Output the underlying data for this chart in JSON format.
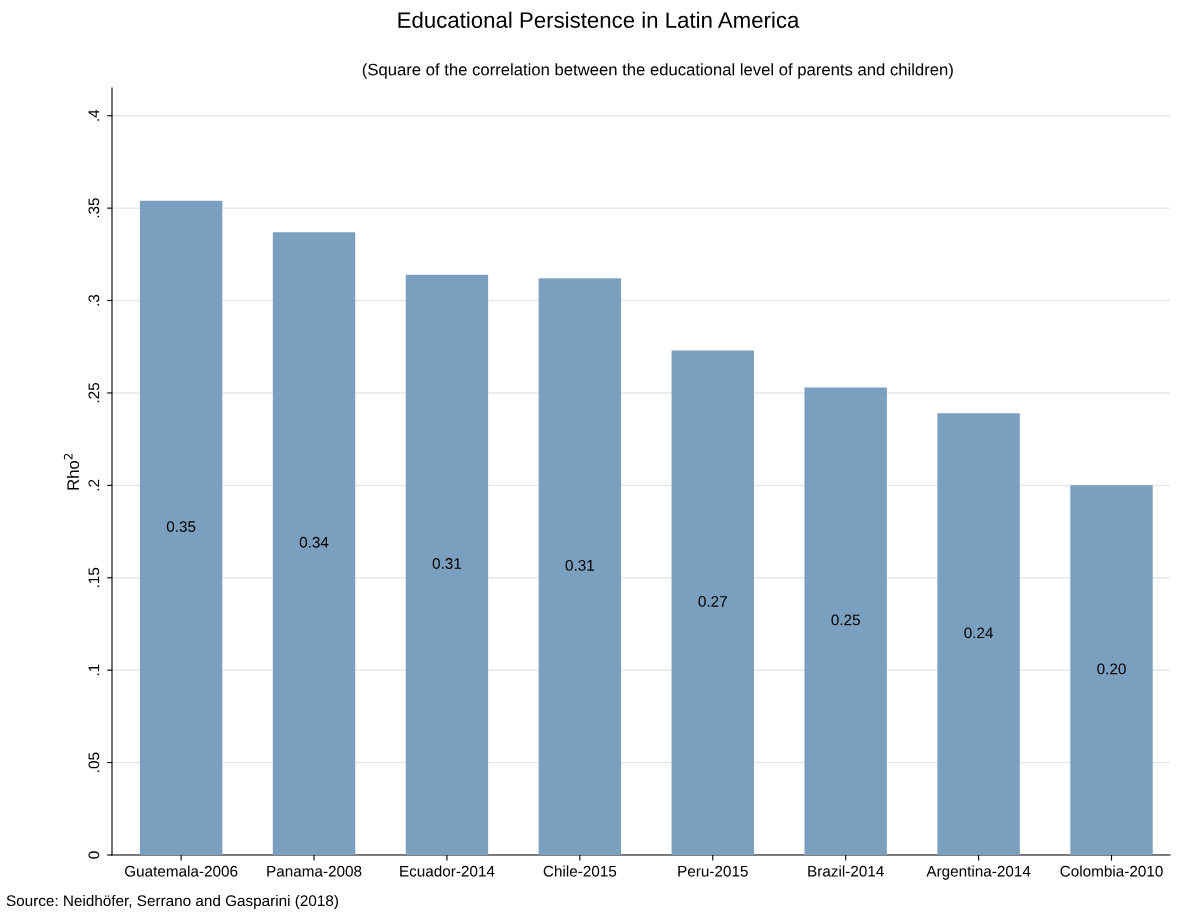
{
  "chart_data": {
    "type": "bar",
    "title": "Educational Persistence in Latin America",
    "subtitle": "(Square of the correlation between the educational level of parents and children)",
    "ylabel": "Rho$^{2}$",
    "categories": [
      "Guatemala-2006",
      "Panama-2008",
      "Ecuador-2014",
      "Chile-2015",
      "Peru-2015",
      "Brazil-2014",
      "Argentina-2014",
      "Colombia-2010"
    ],
    "values": [
      0.354,
      0.337,
      0.314,
      0.312,
      0.273,
      0.253,
      0.239,
      0.2
    ],
    "value_labels": [
      "0.35",
      "0.34",
      "0.31",
      "0.31",
      "0.27",
      "0.25",
      "0.24",
      "0.20"
    ],
    "color": "#7b9fbf",
    "ylim": [
      0,
      0.415
    ],
    "yticks": [
      0,
      {
        "value": 0.05,
        "label": ".05"
      },
      {
        "value": 0.1,
        "label": ".1"
      },
      {
        "value": 0.15,
        "label": ".15"
      },
      {
        "value": 0.2,
        "label": ".2"
      },
      {
        "value": 0.25,
        "label": ".25"
      },
      {
        "value": 0.3,
        "label": ".3"
      },
      {
        "value": 0.35,
        "label": ".35"
      },
      {
        "value": 0.4,
        "label": ".4"
      }
    ],
    "grid": "y",
    "annotations": [
      "Source: Neidhöfer, Serrano and Gasparini (2018)"
    ]
  }
}
